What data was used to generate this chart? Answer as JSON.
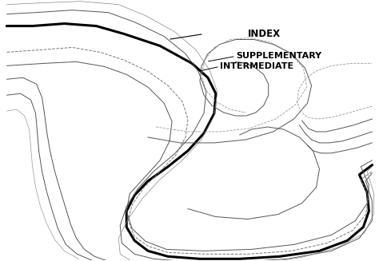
{
  "background_color": "#ffffff",
  "border_color": "#000000",
  "index_color": "#000000",
  "index_linewidth": 2.2,
  "intermediate_color": "#555555",
  "intermediate_linewidth": 0.7,
  "supplementary_color": "#777777",
  "supplementary_linewidth": 0.7,
  "label_index": "INDEX",
  "label_supplementary": "SUPPLEMENTARY",
  "label_intermediate": "INTERMEDIATE",
  "label_fontsize": 8.5,
  "label_fontweight": "bold"
}
